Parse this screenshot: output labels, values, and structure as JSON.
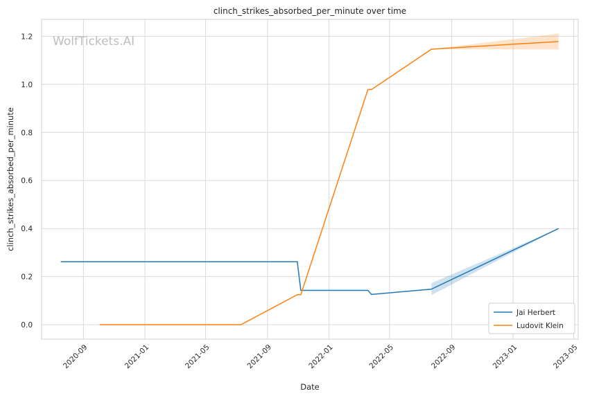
{
  "chart_data": {
    "type": "line",
    "title": "clinch_strikes_absorbed_per_minute over time",
    "xlabel": "Date",
    "ylabel": "clinch_strikes_absorbed_per_minute",
    "watermark": "WolfTickets.AI",
    "xlim": [
      "2020-06-10",
      "2023-05-10"
    ],
    "ylim": [
      -0.06,
      1.27
    ],
    "x_ticks": [
      "2020-09",
      "2021-01",
      "2021-05",
      "2021-09",
      "2022-01",
      "2022-05",
      "2022-09",
      "2023-01",
      "2023-05"
    ],
    "y_ticks": [
      "0.0",
      "0.2",
      "0.4",
      "0.6",
      "0.8",
      "1.0",
      "1.2"
    ],
    "grid": true,
    "legend_position": "bottom-right",
    "series": [
      {
        "name": "Jai Herbert",
        "color": "#1f77b4",
        "points": [
          {
            "x": "2020-07-18",
            "y": 0.262
          },
          {
            "x": "2021-10-30",
            "y": 0.262
          },
          {
            "x": "2021-11-06",
            "y": 0.143
          },
          {
            "x": "2022-03-19",
            "y": 0.143
          },
          {
            "x": "2022-03-26",
            "y": 0.126
          },
          {
            "x": "2022-07-23",
            "y": 0.148
          },
          {
            "x": "2023-04-01",
            "y": 0.4
          }
        ],
        "band": [
          {
            "x": "2022-07-23",
            "lo": 0.123,
            "hi": 0.173
          },
          {
            "x": "2023-04-01",
            "lo": 0.4,
            "hi": 0.4
          }
        ]
      },
      {
        "name": "Ludovit Klein",
        "color": "#ff7f0e",
        "points": [
          {
            "x": "2020-10-03",
            "y": 0.0
          },
          {
            "x": "2021-07-10",
            "y": 0.0
          },
          {
            "x": "2021-10-30",
            "y": 0.125
          },
          {
            "x": "2021-11-06",
            "y": 0.125
          },
          {
            "x": "2022-03-19",
            "y": 0.978
          },
          {
            "x": "2022-03-26",
            "y": 0.978
          },
          {
            "x": "2022-07-23",
            "y": 1.146
          },
          {
            "x": "2023-04-01",
            "y": 1.178
          }
        ],
        "band": [
          {
            "x": "2022-07-23",
            "lo": 1.146,
            "hi": 1.146
          },
          {
            "x": "2023-04-01",
            "lo": 1.145,
            "hi": 1.211
          }
        ]
      }
    ]
  }
}
